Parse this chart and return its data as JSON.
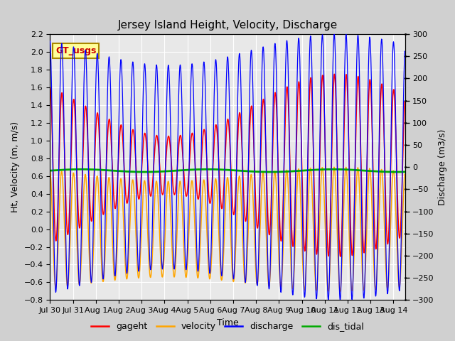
{
  "title": "Jersey Island Height, Velocity, Discharge",
  "xlabel": "Time",
  "ylabel_left": "Ht, Velocity (m, m/s)",
  "ylabel_right": "Discharge (m3/s)",
  "ylim_left": [
    -0.8,
    2.2
  ],
  "ylim_right": [
    -300,
    300
  ],
  "yticks_left": [
    -0.8,
    -0.6,
    -0.4,
    -0.2,
    0.0,
    0.2,
    0.4,
    0.6,
    0.8,
    1.0,
    1.2,
    1.4,
    1.6,
    1.8,
    2.0,
    2.2
  ],
  "yticks_right": [
    -300,
    -250,
    -200,
    -150,
    -100,
    -50,
    0,
    50,
    100,
    150,
    200,
    250,
    300
  ],
  "num_days": 15.5,
  "tidal_period_hours": 12.42,
  "spring_neap_days": 14.77,
  "gageht_mean": 0.72,
  "gageht_amp_mean": 0.68,
  "gageht_amp_mod": 0.35,
  "velocity_amp_mean": 0.62,
  "velocity_amp_mod": 0.08,
  "discharge_amp_mean": 265,
  "discharge_amp_mod": 35,
  "dis_tidal_value": 0.66,
  "dis_tidal_variation": 0.015,
  "color_gageht": "#ff0000",
  "color_velocity": "#ffa500",
  "color_discharge": "#0000ff",
  "color_dis_tidal": "#00aa00",
  "color_GT_box_bg": "#ffff99",
  "color_GT_box_edge": "#aa8800",
  "color_GT_text": "#cc0000",
  "color_fig_bg": "#d0d0d0",
  "color_plot_bg": "#e8e8e8",
  "color_grid": "#ffffff",
  "color_band_light": "#dcdcdc",
  "legend_labels": [
    "gageht",
    "velocity",
    "discharge",
    "dis_tidal"
  ],
  "legend_colors": [
    "#ff0000",
    "#ffa500",
    "#0000ff",
    "#00aa00"
  ],
  "x_tick_labels": [
    "Jul 30",
    "Jul 31",
    "Aug 1",
    "Aug 2",
    "Aug 3",
    "Aug 4",
    "Aug 5",
    "Aug 6",
    "Aug 7",
    "Aug 8",
    "Aug 9",
    "Aug 10",
    "Aug 11",
    "Aug 12",
    "Aug 13",
    "Aug 14"
  ],
  "figsize": [
    6.4,
    4.8
  ],
  "dpi": 100,
  "title_fontsize": 11,
  "label_fontsize": 9,
  "tick_fontsize": 8,
  "legend_fontsize": 9
}
